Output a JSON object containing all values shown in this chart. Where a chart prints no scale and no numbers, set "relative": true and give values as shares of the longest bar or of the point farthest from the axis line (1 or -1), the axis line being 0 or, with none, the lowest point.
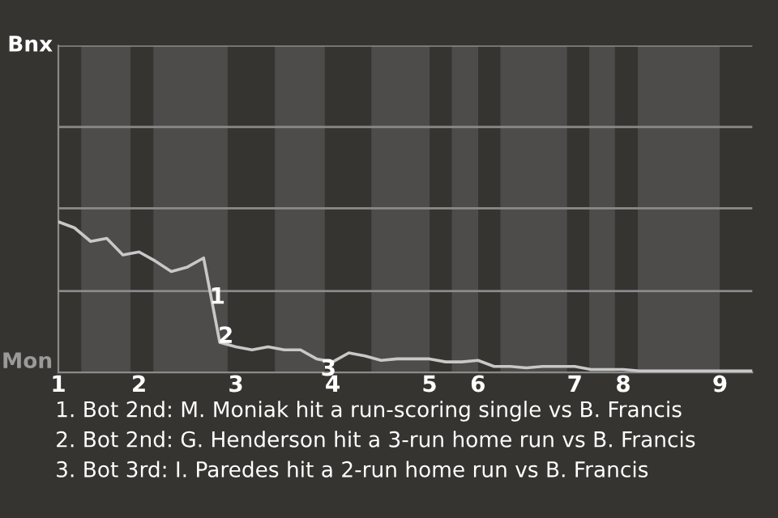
{
  "chart_data": {
    "type": "line",
    "relative": true,
    "categories": [
      "1",
      null,
      null,
      null,
      null,
      "2",
      null,
      null,
      null,
      null,
      null,
      "3",
      null,
      null,
      null,
      null,
      null,
      "4",
      null,
      null,
      null,
      null,
      null,
      "5",
      null,
      null,
      "6",
      null,
      null,
      null,
      null,
      null,
      "7",
      null,
      null,
      "8",
      null,
      null,
      null,
      null,
      null,
      "9",
      null,
      null
    ],
    "series": [
      {
        "color": "#c8c8c8",
        "values": [
          1,
          0.96,
          0.87,
          0.89,
          0.78,
          0.8,
          0.74,
          0.67,
          0.7,
          0.76,
          0.2,
          0.17,
          0.15,
          0.17,
          0.15,
          0.15,
          0.09,
          0.07,
          0.13,
          0.11,
          0.08,
          0.09,
          0.09,
          0.09,
          0.07,
          0.07,
          0.08,
          0.04,
          0.04,
          0.03,
          0.04,
          0.04,
          0.04,
          0.02,
          0.02,
          0.02,
          0.01,
          0.01,
          0.01,
          0.01,
          0.01,
          0.01,
          0.01,
          0.01
        ]
      }
    ],
    "ref_lines": [
      {
        "axis": "y",
        "value": 0.54,
        "color": "#8a8a8a"
      },
      {
        "axis": "y",
        "value": 1.09,
        "color": "#8a8a8a"
      },
      {
        "axis": "y",
        "value": 1.63,
        "color": "#8a8a8a"
      },
      {
        "axis": "y",
        "value": 2.17,
        "color": "#8a8a8a"
      }
    ],
    "marker": "none",
    "line_style": "solid",
    "annotations": [
      "Bnx",
      "Mon",
      "1",
      "2",
      "3",
      "1. Bot 2nd: M. Moniak hit a run-scoring single vs B. Francis",
      "2. Bot 2nd: G. Henderson hit a 3-run home run vs B. Francis",
      "3. Bot 3rd: I. Paredes hit a 2-run home run vs B. Francis"
    ]
  }
}
